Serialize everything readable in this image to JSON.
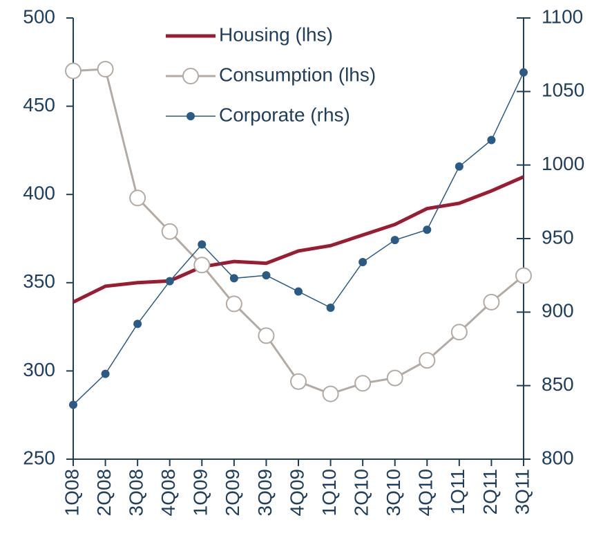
{
  "chart_data": {
    "type": "line",
    "categories": [
      "1Q08",
      "2Q08",
      "3Q08",
      "4Q08",
      "1Q09",
      "2Q09",
      "3Q09",
      "4Q09",
      "1Q10",
      "2Q10",
      "3Q10",
      "4Q10",
      "1Q11",
      "2Q11",
      "3Q11"
    ],
    "series": [
      {
        "name": "Housing (lhs)",
        "color": "#9b1b30",
        "values": [
          339,
          348,
          350,
          351,
          359,
          362,
          361,
          368,
          371,
          377,
          383,
          392,
          395,
          402,
          410
        ]
      },
      {
        "name": "Consumption (lhs)",
        "color": "#b3aaa3",
        "values": [
          470,
          471,
          398,
          379,
          360,
          338,
          320,
          294,
          287,
          293,
          296,
          306,
          322,
          339,
          354
        ]
      },
      {
        "name": "Corporate (rhs)",
        "color": "#2b5a84",
        "axis": "y2",
        "values": [
          837,
          858,
          892,
          921,
          946,
          923,
          925,
          914,
          903,
          934,
          949,
          956,
          999,
          1017,
          1063
        ]
      }
    ],
    "ylim": [
      250,
      500
    ],
    "yticks": [
      250,
      300,
      350,
      400,
      450,
      500
    ],
    "y2lim": [
      800,
      1100
    ],
    "y2ticks": [
      800,
      850,
      900,
      950,
      1000,
      1050,
      1100
    ]
  }
}
